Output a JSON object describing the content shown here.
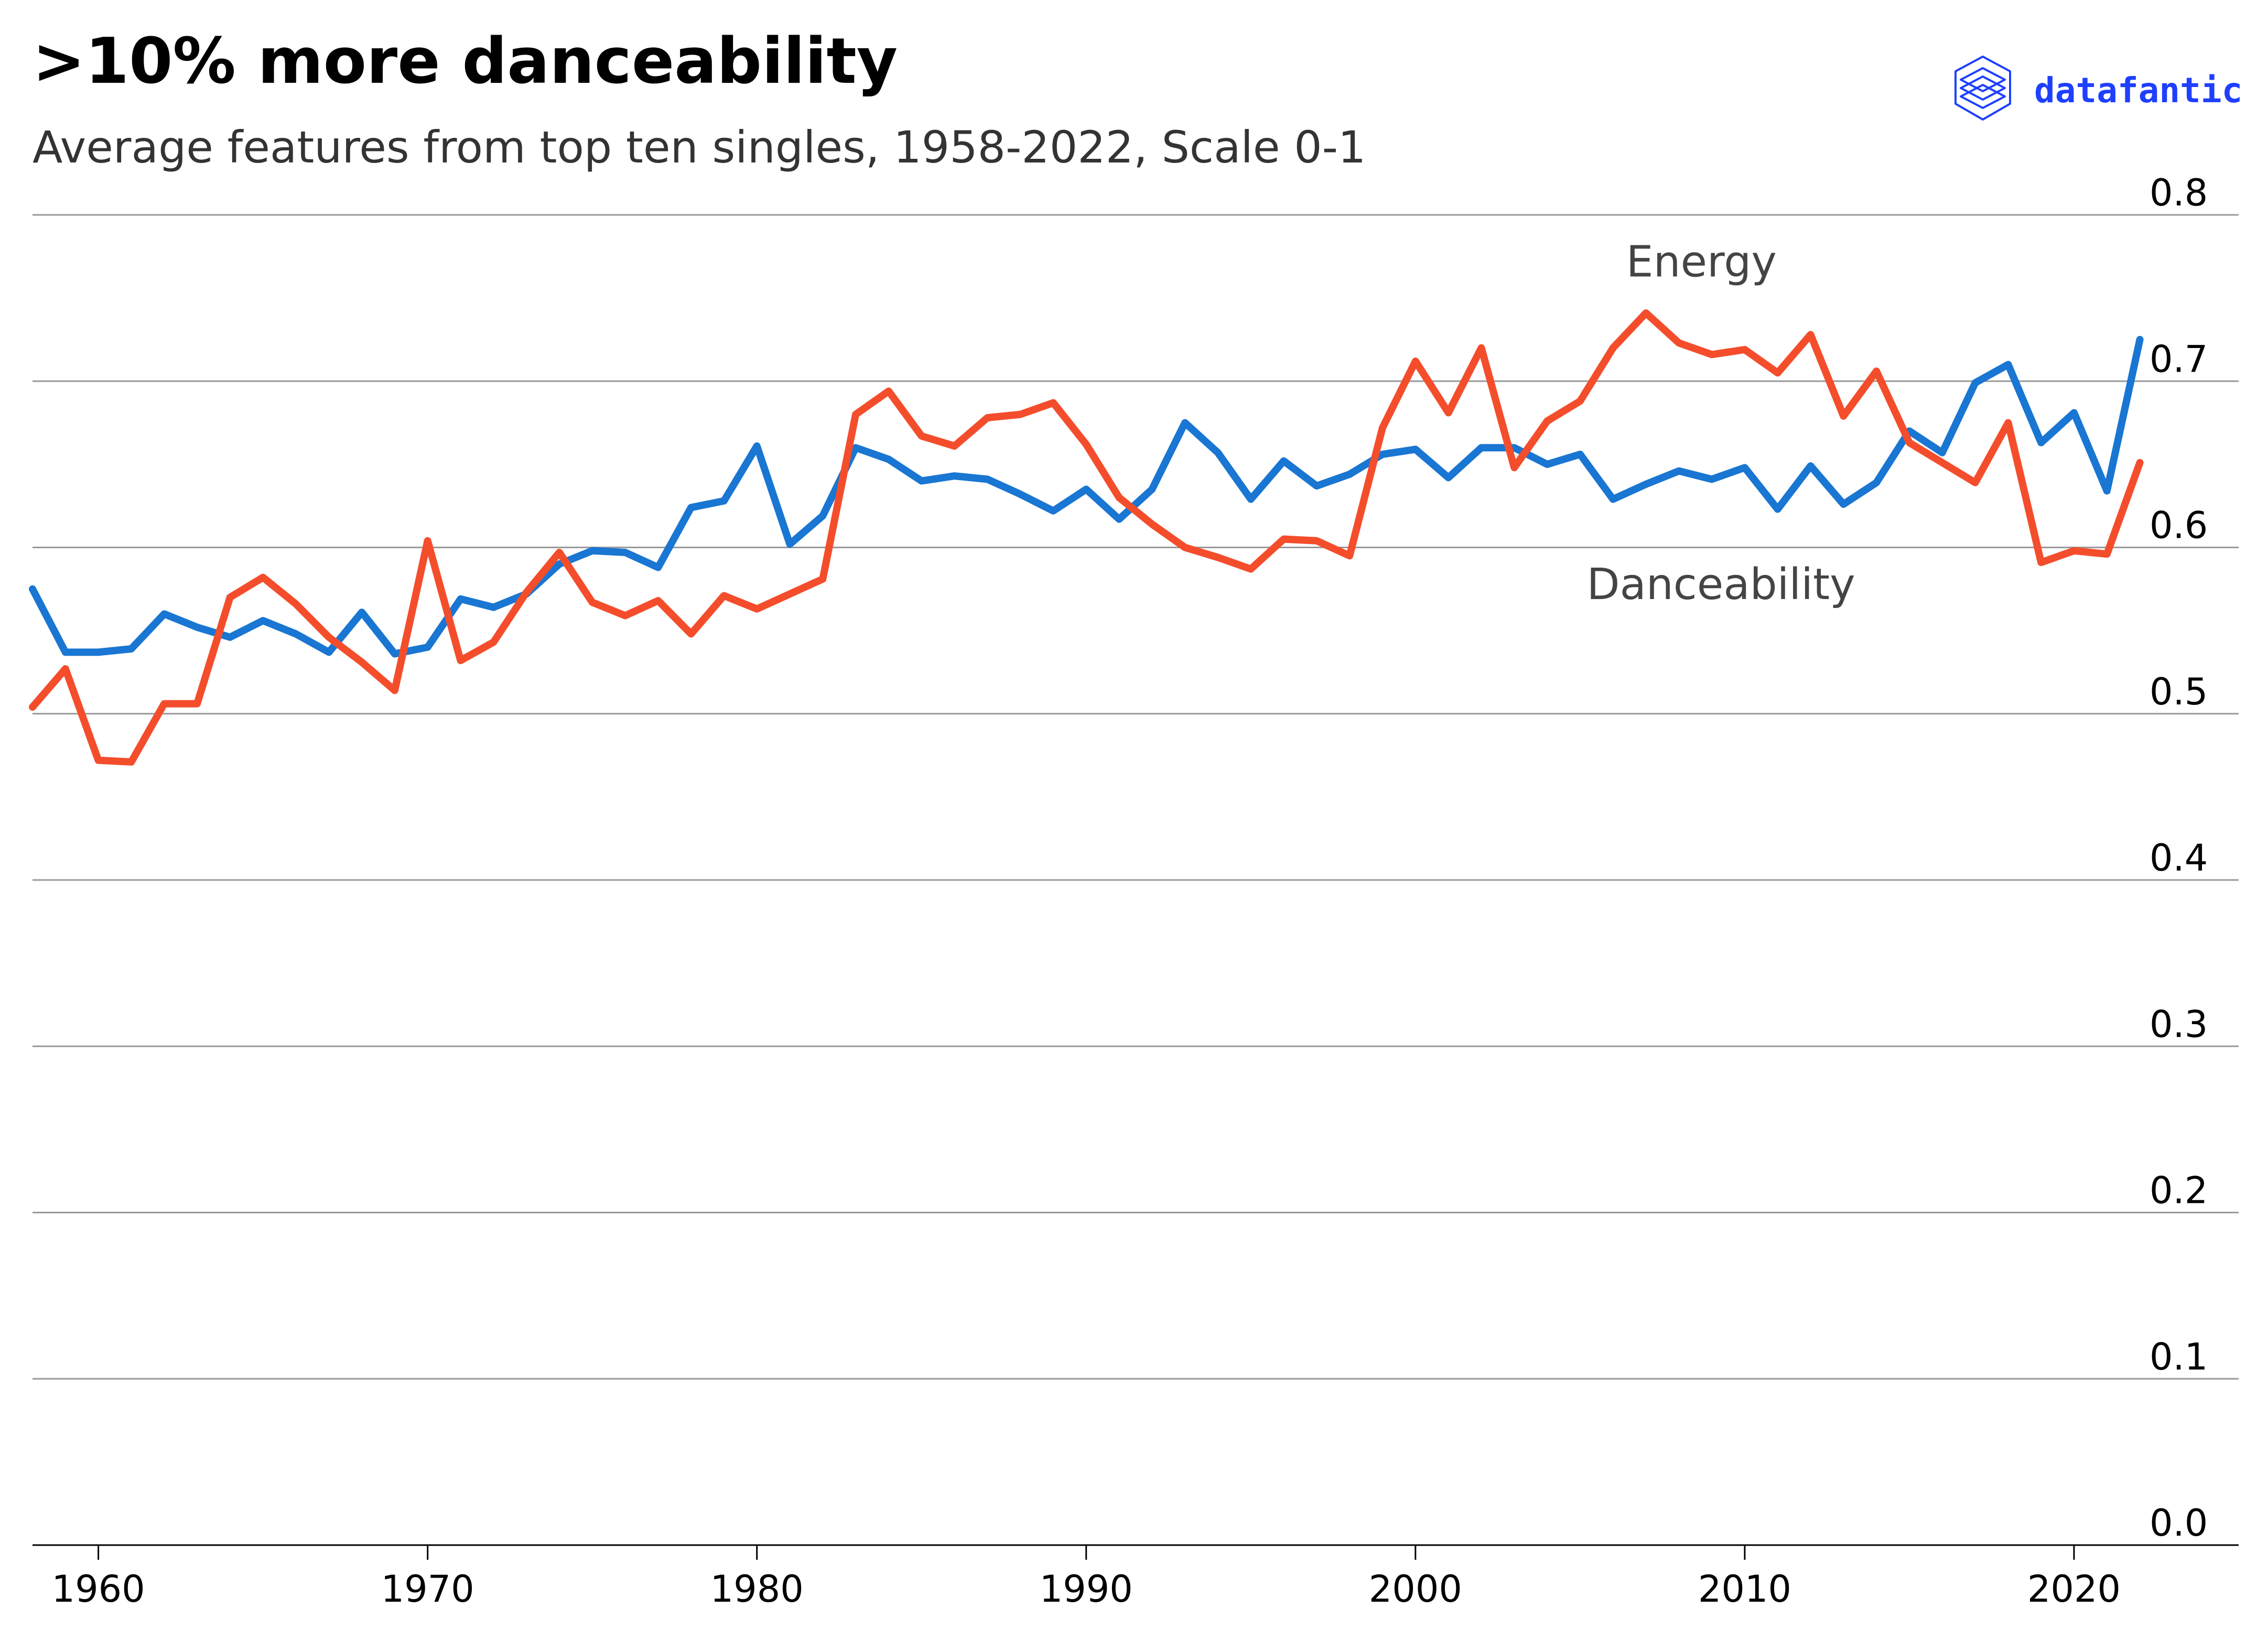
{
  "colors": {
    "danceability": "#1976d2",
    "energy": "#f44d2c",
    "grid": "#999999",
    "brand": "#1f3fff"
  },
  "brand": {
    "name": "datafantic",
    "icon": "layered-stack-icon"
  },
  "chart_data": {
    "type": "line",
    "title": ">10% more danceability",
    "subtitle": "Average features from top ten singles, 1958-2022, Scale 0-1",
    "xlabel": "",
    "ylabel": "",
    "xlim": [
      1958,
      2025
    ],
    "ylim": [
      0,
      0.8
    ],
    "x_ticks": [
      1960,
      1970,
      1980,
      1990,
      2000,
      2010,
      2020
    ],
    "y_ticks": [
      "0.0",
      "0.1",
      "0.2",
      "0.3",
      "0.4",
      "0.5",
      "0.6",
      "0.7",
      "0.8"
    ],
    "grid": "horizontal",
    "legend": "none (direct labels)",
    "x": [
      1958,
      1959,
      1960,
      1961,
      1962,
      1963,
      1964,
      1965,
      1966,
      1967,
      1968,
      1969,
      1970,
      1971,
      1972,
      1973,
      1974,
      1975,
      1976,
      1977,
      1978,
      1979,
      1980,
      1981,
      1982,
      1983,
      1984,
      1985,
      1986,
      1987,
      1988,
      1989,
      1990,
      1991,
      1992,
      1993,
      1994,
      1995,
      1996,
      1997,
      1998,
      1999,
      2000,
      2001,
      2002,
      2003,
      2004,
      2005,
      2006,
      2007,
      2008,
      2009,
      2010,
      2011,
      2012,
      2013,
      2014,
      2015,
      2016,
      2017,
      2018,
      2019,
      2020,
      2021,
      2022
    ],
    "series": [
      {
        "name": "Danceability",
        "label_at": [
          2005.2,
          0.569
        ],
        "values": [
          0.575,
          0.537,
          0.537,
          0.539,
          0.56,
          0.552,
          0.546,
          0.556,
          0.548,
          0.537,
          0.561,
          0.536,
          0.54,
          0.569,
          0.564,
          0.572,
          0.59,
          0.598,
          0.597,
          0.588,
          0.624,
          0.628,
          0.661,
          0.602,
          0.619,
          0.66,
          0.653,
          0.64,
          0.643,
          0.641,
          0.632,
          0.622,
          0.635,
          0.617,
          0.635,
          0.675,
          0.657,
          0.629,
          0.652,
          0.637,
          0.644,
          0.656,
          0.659,
          0.642,
          0.66,
          0.66,
          0.65,
          0.656,
          0.629,
          0.638,
          0.646,
          0.641,
          0.648,
          0.623,
          0.649,
          0.626,
          0.639,
          0.67,
          0.657,
          0.699,
          0.71,
          0.663,
          0.681,
          0.634,
          0.725
        ]
      },
      {
        "name": "Energy",
        "label_at": [
          2006.4,
          0.763
        ],
        "values": [
          0.504,
          0.527,
          0.472,
          0.471,
          0.506,
          0.506,
          0.57,
          0.582,
          0.566,
          0.546,
          0.531,
          0.514,
          0.604,
          0.532,
          0.543,
          0.573,
          0.597,
          0.567,
          0.559,
          0.568,
          0.548,
          0.571,
          0.563,
          0.572,
          0.581,
          0.68,
          0.694,
          0.667,
          0.661,
          0.678,
          0.68,
          0.687,
          0.662,
          0.63,
          0.614,
          0.6,
          0.594,
          0.587,
          0.605,
          0.604,
          0.595,
          0.672,
          0.712,
          0.681,
          0.72,
          0.648,
          0.676,
          0.688,
          0.72,
          0.741,
          0.723,
          0.716,
          0.719,
          0.705,
          0.728,
          0.679,
          0.706,
          0.663,
          0.651,
          0.639,
          0.675,
          0.591,
          0.598,
          0.596,
          0.651
        ]
      }
    ]
  }
}
